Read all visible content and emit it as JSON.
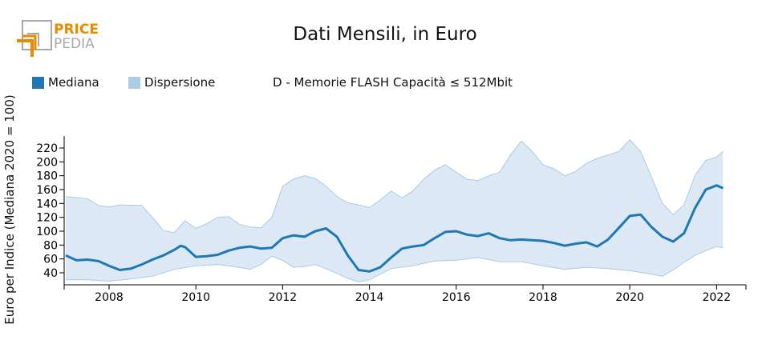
{
  "logo": {
    "text_top": "PRICE",
    "text_bottom": "PEDIA",
    "accent": "#e68a00",
    "gray": "#a0a0a0"
  },
  "chart_data": {
    "type": "area",
    "title": "Dati Mensili, in Euro",
    "subtitle": "D - Memorie FLASH Capacità ≤ 512Mbit",
    "xlabel": "",
    "ylabel": "Euro per Indice (Mediana 2020 = 100)",
    "xlim": [
      2007.0,
      2022.15
    ],
    "ylim": [
      20,
      237
    ],
    "x_ticks": [
      2008,
      2010,
      2012,
      2014,
      2016,
      2018,
      2020,
      2022
    ],
    "y_ticks": [
      40,
      60,
      80,
      100,
      120,
      140,
      160,
      180,
      200,
      220
    ],
    "grid": false,
    "legend": [
      {
        "name": "Mediana",
        "color": "#1f77b4"
      },
      {
        "name": "Dispersione",
        "color": "#aecde3"
      }
    ],
    "legend_position": "top-left",
    "series": [
      {
        "name": "Mediana",
        "points": [
          [
            2007.0,
            65
          ],
          [
            2007.25,
            58
          ],
          [
            2007.5,
            59
          ],
          [
            2007.75,
            57
          ],
          [
            2008.0,
            50
          ],
          [
            2008.25,
            44
          ],
          [
            2008.5,
            46
          ],
          [
            2008.75,
            52
          ],
          [
            2009.0,
            59
          ],
          [
            2009.25,
            65
          ],
          [
            2009.5,
            73
          ],
          [
            2009.65,
            79
          ],
          [
            2009.75,
            77
          ],
          [
            2010.0,
            63
          ],
          [
            2010.25,
            64
          ],
          [
            2010.5,
            66
          ],
          [
            2010.75,
            72
          ],
          [
            2011.0,
            76
          ],
          [
            2011.25,
            78
          ],
          [
            2011.5,
            75
          ],
          [
            2011.75,
            76
          ],
          [
            2012.0,
            90
          ],
          [
            2012.25,
            94
          ],
          [
            2012.5,
            92
          ],
          [
            2012.75,
            100
          ],
          [
            2013.0,
            104
          ],
          [
            2013.25,
            92
          ],
          [
            2013.5,
            65
          ],
          [
            2013.75,
            44
          ],
          [
            2014.0,
            42
          ],
          [
            2014.25,
            48
          ],
          [
            2014.5,
            62
          ],
          [
            2014.75,
            75
          ],
          [
            2015.0,
            78
          ],
          [
            2015.25,
            80
          ],
          [
            2015.5,
            90
          ],
          [
            2015.75,
            99
          ],
          [
            2016.0,
            100
          ],
          [
            2016.25,
            95
          ],
          [
            2016.5,
            93
          ],
          [
            2016.75,
            97
          ],
          [
            2017.0,
            90
          ],
          [
            2017.25,
            87
          ],
          [
            2017.5,
            88
          ],
          [
            2017.75,
            87
          ],
          [
            2018.0,
            86
          ],
          [
            2018.25,
            83
          ],
          [
            2018.5,
            79
          ],
          [
            2018.75,
            82
          ],
          [
            2019.0,
            84
          ],
          [
            2019.25,
            78
          ],
          [
            2019.5,
            88
          ],
          [
            2019.75,
            105
          ],
          [
            2020.0,
            122
          ],
          [
            2020.25,
            124
          ],
          [
            2020.5,
            106
          ],
          [
            2020.75,
            92
          ],
          [
            2021.0,
            85
          ],
          [
            2021.25,
            97
          ],
          [
            2021.5,
            133
          ],
          [
            2021.75,
            160
          ],
          [
            2022.0,
            166
          ],
          [
            2022.15,
            162
          ]
        ]
      },
      {
        "name": "Dispersione (min)",
        "points": [
          [
            2007.0,
            30
          ],
          [
            2007.5,
            30
          ],
          [
            2008.0,
            28
          ],
          [
            2008.5,
            31
          ],
          [
            2009.0,
            35
          ],
          [
            2009.5,
            45
          ],
          [
            2010.0,
            50
          ],
          [
            2010.5,
            52
          ],
          [
            2011.0,
            48
          ],
          [
            2011.25,
            45
          ],
          [
            2011.5,
            52
          ],
          [
            2011.75,
            64
          ],
          [
            2012.0,
            58
          ],
          [
            2012.25,
            48
          ],
          [
            2012.5,
            49
          ],
          [
            2012.75,
            52
          ],
          [
            2013.0,
            46
          ],
          [
            2013.5,
            32
          ],
          [
            2013.75,
            27
          ],
          [
            2014.0,
            30
          ],
          [
            2014.5,
            46
          ],
          [
            2015.0,
            50
          ],
          [
            2015.5,
            57
          ],
          [
            2016.0,
            58
          ],
          [
            2016.5,
            62
          ],
          [
            2017.0,
            56
          ],
          [
            2017.5,
            56
          ],
          [
            2018.0,
            50
          ],
          [
            2018.5,
            45
          ],
          [
            2019.0,
            48
          ],
          [
            2019.5,
            46
          ],
          [
            2020.0,
            43
          ],
          [
            2020.5,
            38
          ],
          [
            2020.75,
            35
          ],
          [
            2021.0,
            44
          ],
          [
            2021.25,
            55
          ],
          [
            2021.5,
            65
          ],
          [
            2021.75,
            72
          ],
          [
            2022.0,
            78
          ],
          [
            2022.15,
            76
          ]
        ]
      },
      {
        "name": "Dispersione (max)",
        "points": [
          [
            2007.0,
            150
          ],
          [
            2007.5,
            147
          ],
          [
            2007.75,
            137
          ],
          [
            2008.0,
            135
          ],
          [
            2008.25,
            138
          ],
          [
            2008.75,
            137
          ],
          [
            2009.0,
            120
          ],
          [
            2009.25,
            101
          ],
          [
            2009.5,
            98
          ],
          [
            2009.75,
            115
          ],
          [
            2010.0,
            104
          ],
          [
            2010.25,
            111
          ],
          [
            2010.5,
            120
          ],
          [
            2010.75,
            121
          ],
          [
            2011.0,
            110
          ],
          [
            2011.25,
            106
          ],
          [
            2011.5,
            105
          ],
          [
            2011.75,
            120
          ],
          [
            2012.0,
            165
          ],
          [
            2012.25,
            175
          ],
          [
            2012.5,
            180
          ],
          [
            2012.75,
            176
          ],
          [
            2013.0,
            165
          ],
          [
            2013.25,
            150
          ],
          [
            2013.5,
            141
          ],
          [
            2013.75,
            138
          ],
          [
            2014.0,
            134
          ],
          [
            2014.25,
            145
          ],
          [
            2014.5,
            158
          ],
          [
            2014.75,
            148
          ],
          [
            2015.0,
            158
          ],
          [
            2015.25,
            175
          ],
          [
            2015.5,
            188
          ],
          [
            2015.75,
            196
          ],
          [
            2016.0,
            185
          ],
          [
            2016.25,
            175
          ],
          [
            2016.5,
            173
          ],
          [
            2016.75,
            180
          ],
          [
            2017.0,
            185
          ],
          [
            2017.25,
            210
          ],
          [
            2017.5,
            230
          ],
          [
            2017.75,
            215
          ],
          [
            2018.0,
            196
          ],
          [
            2018.25,
            190
          ],
          [
            2018.5,
            180
          ],
          [
            2018.75,
            186
          ],
          [
            2019.0,
            198
          ],
          [
            2019.25,
            205
          ],
          [
            2019.5,
            210
          ],
          [
            2019.75,
            215
          ],
          [
            2020.0,
            232
          ],
          [
            2020.25,
            215
          ],
          [
            2020.5,
            178
          ],
          [
            2020.75,
            140
          ],
          [
            2021.0,
            124
          ],
          [
            2021.25,
            138
          ],
          [
            2021.5,
            180
          ],
          [
            2021.75,
            202
          ],
          [
            2022.0,
            207
          ],
          [
            2022.15,
            215
          ]
        ]
      }
    ]
  }
}
